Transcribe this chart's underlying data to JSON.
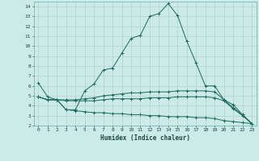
{
  "xlabel": "Humidex (Indice chaleur)",
  "ylabel": "",
  "xlim": [
    -0.5,
    23.5
  ],
  "ylim": [
    2,
    14.5
  ],
  "yticks": [
    2,
    3,
    4,
    5,
    6,
    7,
    8,
    9,
    10,
    11,
    12,
    13,
    14
  ],
  "xticks": [
    0,
    1,
    2,
    3,
    4,
    5,
    6,
    7,
    8,
    9,
    10,
    11,
    12,
    13,
    14,
    15,
    16,
    17,
    18,
    19,
    20,
    21,
    22,
    23
  ],
  "bg_color": "#cceae7",
  "line_color": "#1a6b5c",
  "grid_color": "#aed4d0",
  "lines": [
    {
      "x": [
        0,
        1,
        2,
        3,
        4,
        5,
        6,
        7,
        8,
        9,
        10,
        11,
        12,
        13,
        14,
        15,
        16,
        17,
        18,
        19,
        20,
        21,
        22,
        23
      ],
      "y": [
        6.3,
        4.9,
        4.6,
        3.6,
        3.6,
        5.5,
        6.2,
        7.6,
        7.8,
        9.3,
        10.8,
        11.1,
        13.0,
        13.3,
        14.3,
        13.1,
        10.5,
        8.3,
        6.0,
        6.0,
        4.6,
        4.1,
        3.1,
        2.2
      ]
    },
    {
      "x": [
        0,
        1,
        2,
        3,
        4,
        5,
        6,
        7,
        8,
        9,
        10,
        11,
        12,
        13,
        14,
        15,
        16,
        17,
        18,
        19,
        20,
        21,
        22,
        23
      ],
      "y": [
        4.9,
        4.6,
        4.6,
        4.6,
        4.6,
        4.7,
        4.8,
        5.0,
        5.1,
        5.2,
        5.3,
        5.3,
        5.4,
        5.4,
        5.4,
        5.5,
        5.5,
        5.5,
        5.5,
        5.4,
        4.6,
        3.8,
        3.1,
        2.2
      ]
    },
    {
      "x": [
        0,
        1,
        2,
        3,
        4,
        5,
        6,
        7,
        8,
        9,
        10,
        11,
        12,
        13,
        14,
        15,
        16,
        17,
        18,
        19,
        20,
        21,
        22,
        23
      ],
      "y": [
        4.9,
        4.6,
        4.6,
        4.5,
        4.5,
        4.5,
        4.5,
        4.6,
        4.7,
        4.7,
        4.7,
        4.7,
        4.8,
        4.8,
        4.8,
        4.9,
        4.9,
        4.9,
        4.9,
        4.8,
        4.5,
        3.7,
        3.0,
        2.2
      ]
    },
    {
      "x": [
        0,
        1,
        2,
        3,
        4,
        5,
        6,
        7,
        8,
        9,
        10,
        11,
        12,
        13,
        14,
        15,
        16,
        17,
        18,
        19,
        20,
        21,
        22,
        23
      ],
      "y": [
        4.9,
        4.6,
        4.6,
        3.6,
        3.5,
        3.4,
        3.3,
        3.3,
        3.2,
        3.2,
        3.1,
        3.1,
        3.0,
        3.0,
        2.9,
        2.9,
        2.9,
        2.8,
        2.8,
        2.7,
        2.5,
        2.4,
        2.3,
        2.2
      ]
    }
  ]
}
